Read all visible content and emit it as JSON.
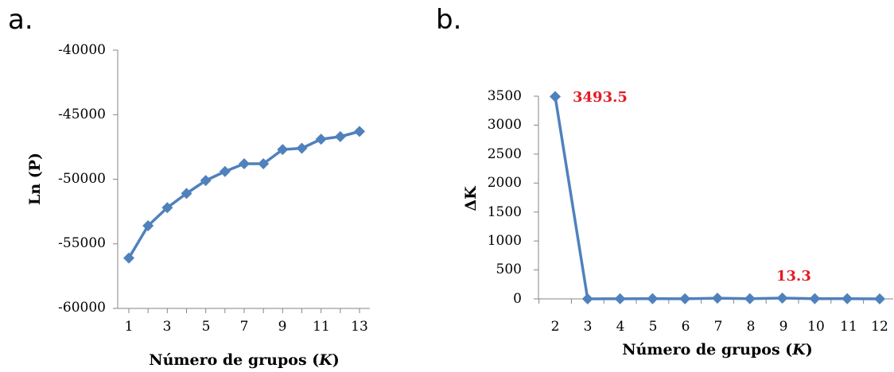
{
  "chart_data": [
    {
      "panel_label": "a.",
      "type": "line",
      "x": [
        1,
        2,
        3,
        4,
        5,
        6,
        7,
        8,
        9,
        10,
        11,
        12,
        13
      ],
      "y": [
        -56100,
        -53600,
        -52200,
        -51100,
        -50100,
        -49400,
        -48800,
        -48800,
        -47700,
        -47600,
        -46900,
        -46700,
        -46300
      ],
      "xlim": [
        1,
        13
      ],
      "ylim": [
        -60000,
        -40000
      ],
      "xticks": [
        "1",
        "3",
        "5",
        "7",
        "9",
        "11",
        "13"
      ],
      "yticks": [
        "-40000",
        "-45000",
        "-50000",
        "-55000",
        "-60000"
      ],
      "xlabel_main": "Número de grupos (",
      "xlabel_k": "K",
      "xlabel_close": ")",
      "ylabel": "Ln (P)",
      "color": "#4F81BD",
      "marker": "diamond",
      "grid": false
    },
    {
      "panel_label": "b.",
      "type": "line",
      "x": [
        2,
        3,
        4,
        5,
        6,
        7,
        8,
        9,
        10,
        11,
        12
      ],
      "y": [
        3493.5,
        0,
        2,
        3,
        2,
        12,
        3,
        13.3,
        4,
        3,
        0
      ],
      "xlim": [
        2,
        12
      ],
      "ylim": [
        0,
        3500
      ],
      "xticks": [
        "2",
        "3",
        "4",
        "5",
        "6",
        "7",
        "8",
        "9",
        "10",
        "11",
        "12"
      ],
      "yticks": [
        "3500",
        "3000",
        "2500",
        "2000",
        "1500",
        "1000",
        "500",
        "0"
      ],
      "xlabel_main": "Número de grupos (",
      "xlabel_k": "K",
      "xlabel_close": ")",
      "ylabel": "ΔK",
      "annotations": [
        {
          "text": "3493.5",
          "x": 2,
          "y": 3493.5
        },
        {
          "text": "13.3",
          "x": 9,
          "y": 13.3
        }
      ],
      "annotation_color": "#E31B23",
      "color": "#4F81BD",
      "marker": "diamond",
      "grid": false
    }
  ]
}
